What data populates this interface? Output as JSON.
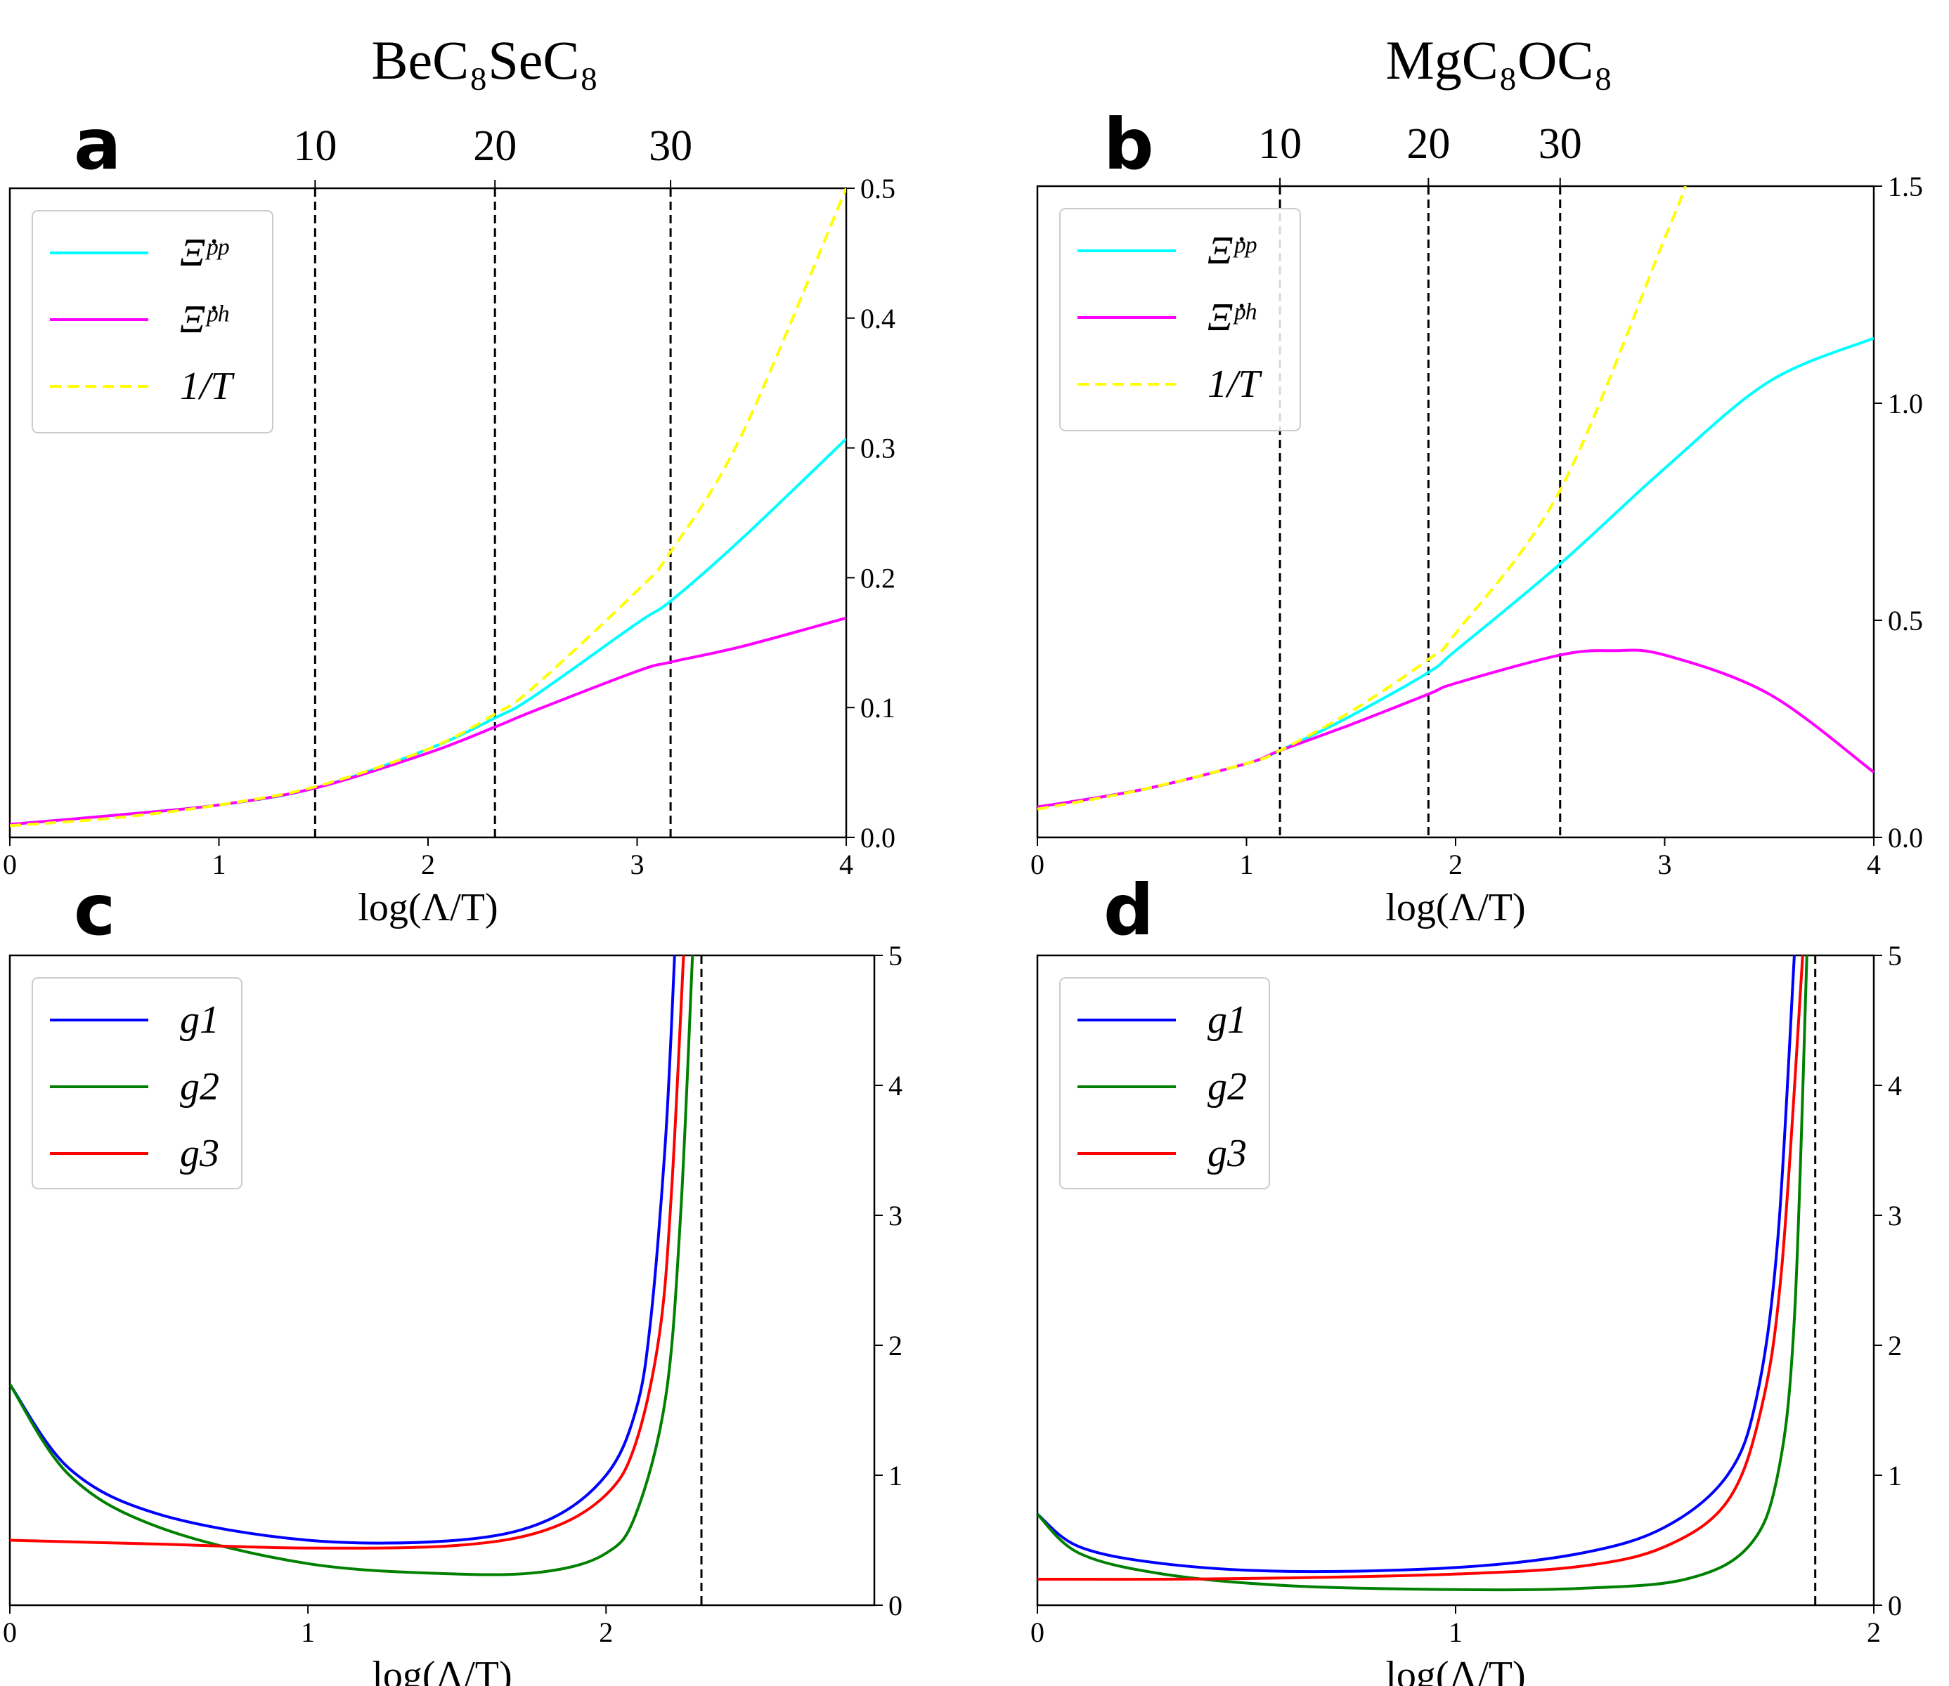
{
  "figure": {
    "titles": [
      "BeC₈SeC₈",
      "MgC₈OC₈"
    ],
    "panel_letters": [
      "a",
      "b",
      "c",
      "d"
    ]
  },
  "chart_data": [
    {
      "panel": "a",
      "type": "line",
      "title": "BeC₈SeC₈",
      "xlabel": "log(Λ/T)",
      "ylabel": "",
      "xlim": [
        0,
        4
      ],
      "ylim": [
        0,
        0.5
      ],
      "xticks": [
        0,
        1,
        2,
        3,
        4
      ],
      "yticks": [
        0.0,
        0.1,
        0.2,
        0.3,
        0.4,
        0.5
      ],
      "ytick_labels": [
        "0.0",
        "0.1",
        "0.2",
        "0.3",
        "0.4",
        "0.5"
      ],
      "yaxis_side": "right",
      "top_axis": {
        "label": "",
        "ticks": [
          {
            "value": 1.46,
            "label": "10"
          },
          {
            "value": 2.32,
            "label": "20"
          },
          {
            "value": 3.16,
            "label": "30"
          }
        ]
      },
      "vlines": [
        1.46,
        2.32,
        3.16
      ],
      "legend": {
        "placement": "top-left",
        "entries": [
          "Ξ̇ᵖᵖ",
          "Ξ̇ᵖʰ",
          "1/T"
        ]
      },
      "series": [
        {
          "name": "Ξ̇ᵖᵖ",
          "color": "#00ffff",
          "style": "solid",
          "x": [
            0,
            0.5,
            1,
            1.46,
            2,
            2.32,
            2.5,
            3,
            3.16,
            3.5,
            4
          ],
          "y": [
            0.01,
            0.017,
            0.025,
            0.038,
            0.068,
            0.092,
            0.108,
            0.165,
            0.182,
            0.23,
            0.307
          ]
        },
        {
          "name": "Ξ̇ᵖʰ",
          "color": "#ff00ff",
          "style": "solid",
          "x": [
            0,
            0.5,
            1,
            1.46,
            2,
            2.32,
            2.5,
            3,
            3.16,
            3.5,
            4
          ],
          "y": [
            0.01,
            0.017,
            0.025,
            0.038,
            0.065,
            0.085,
            0.097,
            0.128,
            0.135,
            0.147,
            0.169
          ]
        },
        {
          "name": "1/T",
          "color": "#ffff00",
          "style": "dashed",
          "x": [
            0,
            0.5,
            1,
            1.46,
            2,
            2.32,
            2.5,
            3,
            3.16,
            3.5,
            4
          ],
          "y": [
            0.009,
            0.015,
            0.025,
            0.039,
            0.068,
            0.095,
            0.115,
            0.19,
            0.22,
            0.31,
            0.5
          ]
        }
      ]
    },
    {
      "panel": "b",
      "type": "line",
      "title": "MgC₈OC₈",
      "xlabel": "log(Λ/T)",
      "ylabel": "",
      "xlim": [
        0,
        4
      ],
      "ylim": [
        0,
        1.5
      ],
      "xticks": [
        0,
        1,
        2,
        3,
        4
      ],
      "yticks": [
        0.0,
        0.5,
        1.0,
        1.5
      ],
      "ytick_labels": [
        "0.0",
        "0.5",
        "1.0",
        "1.5"
      ],
      "yaxis_side": "right",
      "top_axis": {
        "label": "",
        "ticks": [
          {
            "value": 1.16,
            "label": "10"
          },
          {
            "value": 1.87,
            "label": "20"
          },
          {
            "value": 2.5,
            "label": "30"
          }
        ]
      },
      "vlines": [
        1.16,
        1.87,
        2.5
      ],
      "legend": {
        "placement": "top-left",
        "entries": [
          "Ξ̇ᵖᵖ",
          "Ξ̇ᵖʰ",
          "1/T"
        ]
      },
      "series": [
        {
          "name": "Ξ̇ᵖᵖ",
          "color": "#00ffff",
          "style": "solid",
          "x": [
            0,
            0.5,
            1,
            1.16,
            1.5,
            1.87,
            2,
            2.5,
            3,
            3.5,
            4
          ],
          "y": [
            0.07,
            0.11,
            0.17,
            0.2,
            0.28,
            0.38,
            0.43,
            0.63,
            0.85,
            1.05,
            1.15
          ]
        },
        {
          "name": "Ξ̇ᵖʰ",
          "color": "#ff00ff",
          "style": "solid",
          "x": [
            0,
            0.5,
            1,
            1.16,
            1.5,
            1.87,
            2,
            2.5,
            2.75,
            3,
            3.5,
            4
          ],
          "y": [
            0.07,
            0.11,
            0.17,
            0.2,
            0.26,
            0.33,
            0.355,
            0.42,
            0.43,
            0.42,
            0.33,
            0.15
          ]
        },
        {
          "name": "1/T",
          "color": "#ffff00",
          "style": "dashed",
          "x": [
            0,
            0.5,
            1,
            1.16,
            1.5,
            1.87,
            2,
            2.5,
            3,
            3.1
          ],
          "y": [
            0.065,
            0.11,
            0.17,
            0.2,
            0.29,
            0.41,
            0.47,
            0.8,
            1.38,
            1.5
          ]
        }
      ]
    },
    {
      "panel": "c",
      "type": "line",
      "title": "",
      "xlabel": "log(Λ/T)",
      "ylabel": "",
      "xlim": [
        0,
        2.9
      ],
      "ylim": [
        0,
        5
      ],
      "xticks": [
        0,
        1,
        2
      ],
      "yticks": [
        0,
        1,
        2,
        3,
        4,
        5
      ],
      "ytick_labels": [
        "0",
        "1",
        "2",
        "3",
        "4",
        "5"
      ],
      "yaxis_side": "right",
      "vlines": [
        2.32
      ],
      "legend": {
        "placement": "top-left",
        "entries": [
          "g1",
          "g2",
          "g3"
        ]
      },
      "series": [
        {
          "name": "g1",
          "color": "#0000ff",
          "style": "solid",
          "x": [
            0,
            0.2,
            0.5,
            1,
            1.5,
            1.8,
            2,
            2.1,
            2.15,
            2.2,
            2.23
          ],
          "y": [
            1.7,
            1.05,
            0.7,
            0.5,
            0.5,
            0.65,
            1.0,
            1.5,
            2.2,
            3.6,
            5
          ]
        },
        {
          "name": "g2",
          "color": "#008000",
          "style": "solid",
          "x": [
            0,
            0.2,
            0.5,
            1,
            1.5,
            1.8,
            2,
            2.1,
            2.2,
            2.25,
            2.29
          ],
          "y": [
            1.7,
            1.0,
            0.6,
            0.32,
            0.24,
            0.26,
            0.4,
            0.7,
            1.6,
            3.0,
            5
          ]
        },
        {
          "name": "g3",
          "color": "#ff0000",
          "style": "solid",
          "x": [
            0,
            0.5,
            1,
            1.5,
            1.8,
            2,
            2.1,
            2.18,
            2.22,
            2.26
          ],
          "y": [
            0.5,
            0.47,
            0.44,
            0.46,
            0.58,
            0.85,
            1.25,
            2.1,
            3.2,
            5
          ]
        }
      ]
    },
    {
      "panel": "d",
      "type": "line",
      "title": "",
      "xlabel": "log(Λ/T)",
      "ylabel": "",
      "xlim": [
        0,
        2
      ],
      "ylim": [
        0,
        5
      ],
      "xticks": [
        0,
        1,
        2
      ],
      "yticks": [
        0,
        1,
        2,
        3,
        4,
        5
      ],
      "ytick_labels": [
        "0",
        "1",
        "2",
        "3",
        "4",
        "5"
      ],
      "yaxis_side": "right",
      "vlines": [
        1.86
      ],
      "legend": {
        "placement": "top-left",
        "entries": [
          "g1",
          "g2",
          "g3"
        ]
      },
      "series": [
        {
          "name": "g1",
          "color": "#0000ff",
          "style": "solid",
          "x": [
            0,
            0.1,
            0.3,
            0.6,
            1,
            1.3,
            1.5,
            1.65,
            1.72,
            1.77,
            1.81
          ],
          "y": [
            0.7,
            0.45,
            0.32,
            0.26,
            0.29,
            0.4,
            0.6,
            1.0,
            1.6,
            2.8,
            5
          ]
        },
        {
          "name": "g2",
          "color": "#008000",
          "style": "solid",
          "x": [
            0,
            0.1,
            0.3,
            0.6,
            1,
            1.3,
            1.55,
            1.7,
            1.77,
            1.81,
            1.84
          ],
          "y": [
            0.7,
            0.4,
            0.24,
            0.15,
            0.12,
            0.13,
            0.2,
            0.45,
            1.0,
            2.2,
            5
          ]
        },
        {
          "name": "g3",
          "color": "#ff0000",
          "style": "solid",
          "x": [
            0,
            0.3,
            0.6,
            1,
            1.3,
            1.5,
            1.65,
            1.73,
            1.78,
            1.83
          ],
          "y": [
            0.2,
            0.2,
            0.21,
            0.24,
            0.3,
            0.45,
            0.8,
            1.5,
            2.6,
            5
          ]
        }
      ]
    }
  ]
}
